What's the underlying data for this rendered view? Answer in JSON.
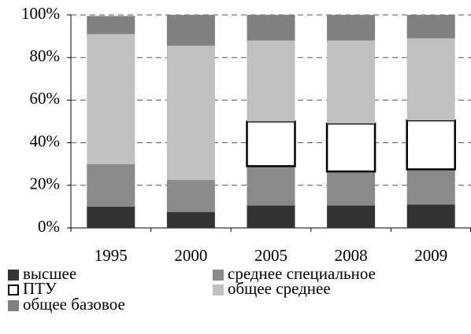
{
  "chart_data": {
    "type": "stacked_bar",
    "categories": [
      "1995",
      "2000",
      "2005",
      "2008",
      "2009"
    ],
    "series": [
      {
        "name": "высшее",
        "color": "#333333",
        "values": [
          10,
          7.5,
          10.5,
          10.5,
          11
        ]
      },
      {
        "name": "среднее специальное",
        "color": "#8a8a8a",
        "values": [
          20,
          15,
          18.5,
          16,
          16.5
        ]
      },
      {
        "name": "ПТУ",
        "color": "#ffffff",
        "values": [
          0,
          0,
          21,
          22.5,
          23
        ]
      },
      {
        "name": "общее среднее",
        "color": "#c0c0c0",
        "values": [
          61,
          63,
          38,
          39,
          38.5
        ]
      },
      {
        "name": "общее базовое",
        "color": "#808080",
        "values": [
          8.5,
          14.5,
          12,
          12,
          11
        ]
      }
    ],
    "ylim": [
      0,
      100
    ],
    "yticks": [
      {
        "value": 0,
        "label": "0%"
      },
      {
        "value": 20,
        "label": "20%"
      },
      {
        "value": 40,
        "label": "40%"
      },
      {
        "value": 60,
        "label": "60%"
      },
      {
        "value": 80,
        "label": "80%"
      },
      {
        "value": 100,
        "label": "100%"
      }
    ],
    "grid": true
  }
}
